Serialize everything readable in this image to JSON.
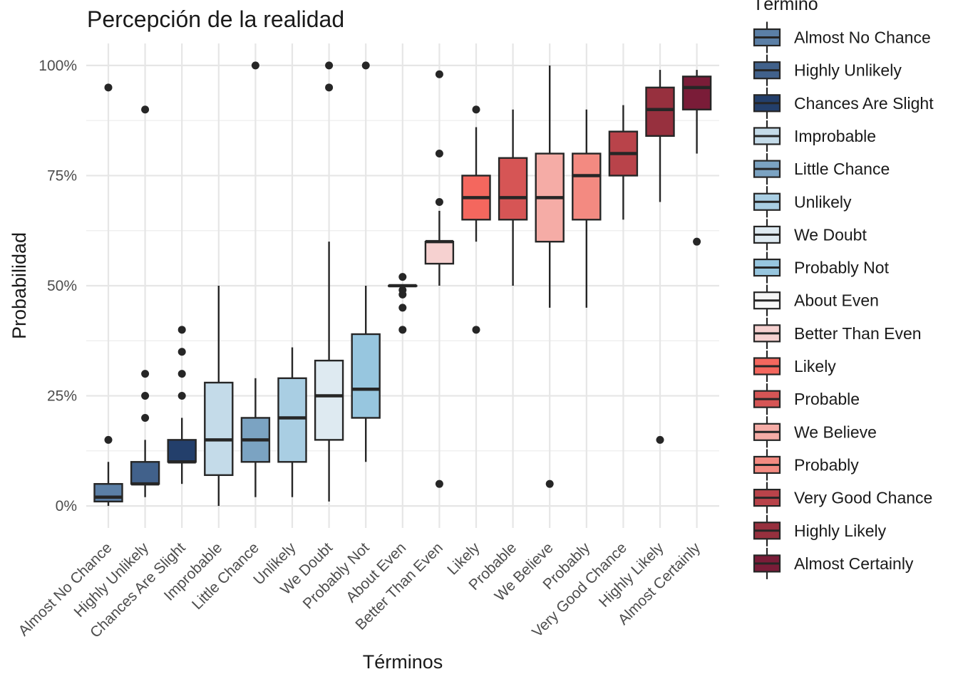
{
  "chart_data": {
    "type": "box",
    "title": "Percepción de la realidad",
    "xlabel": "Términos",
    "ylabel": "Probabilidad",
    "ylim": [
      -0.05,
      1.05
    ],
    "yticks": [
      0,
      0.25,
      0.5,
      0.75,
      1.0
    ],
    "ytick_labels": [
      "0%",
      "25%",
      "50%",
      "75%",
      "100%"
    ],
    "grid": true,
    "legend": {
      "title": "Término",
      "placement": "right"
    },
    "categories": [
      "Almost No Chance",
      "Highly Unlikely",
      "Chances Are Slight",
      "Improbable",
      "Little Chance",
      "Unlikely",
      "We Doubt",
      "Probably Not",
      "About Even",
      "Better Than Even",
      "Likely",
      "Probable",
      "We Believe",
      "Probably",
      "Very Good Chance",
      "Highly Likely",
      "Almost Certainly"
    ],
    "colors": [
      "#5b7fa6",
      "#41618b",
      "#233f6b",
      "#c4dbe9",
      "#7ba3c2",
      "#a9cee3",
      "#deeaf1",
      "#97c6df",
      "#f6f6f6",
      "#f6d1d0",
      "#f4675e",
      "#d65555",
      "#f5aca6",
      "#f38a81",
      "#b9434a",
      "#97303e",
      "#7a1c38"
    ],
    "boxes": [
      {
        "q1": 0.01,
        "median": 0.02,
        "q3": 0.05,
        "whisker_low": 0.0,
        "whisker_high": 0.1,
        "outliers": [
          0.15,
          0.95
        ]
      },
      {
        "q1": 0.05,
        "median": 0.05,
        "q3": 0.1,
        "whisker_low": 0.02,
        "whisker_high": 0.15,
        "outliers": [
          0.2,
          0.25,
          0.3,
          0.9
        ]
      },
      {
        "q1": 0.1,
        "median": 0.1,
        "q3": 0.15,
        "whisker_low": 0.05,
        "whisker_high": 0.2,
        "outliers": [
          0.25,
          0.3,
          0.35,
          0.4
        ]
      },
      {
        "q1": 0.07,
        "median": 0.15,
        "q3": 0.28,
        "whisker_low": 0.0,
        "whisker_high": 0.5,
        "outliers": []
      },
      {
        "q1": 0.1,
        "median": 0.15,
        "q3": 0.2,
        "whisker_low": 0.02,
        "whisker_high": 0.29,
        "outliers": [
          1.0
        ]
      },
      {
        "q1": 0.1,
        "median": 0.2,
        "q3": 0.29,
        "whisker_low": 0.02,
        "whisker_high": 0.36,
        "outliers": []
      },
      {
        "q1": 0.15,
        "median": 0.25,
        "q3": 0.33,
        "whisker_low": 0.01,
        "whisker_high": 0.6,
        "outliers": [
          0.95,
          1.0
        ]
      },
      {
        "q1": 0.2,
        "median": 0.265,
        "q3": 0.39,
        "whisker_low": 0.1,
        "whisker_high": 0.5,
        "outliers": [
          1.0
        ]
      },
      {
        "q1": 0.5,
        "median": 0.5,
        "q3": 0.5,
        "whisker_low": 0.5,
        "whisker_high": 0.5,
        "outliers": [
          0.4,
          0.45,
          0.48,
          0.49,
          0.52
        ]
      },
      {
        "q1": 0.55,
        "median": 0.6,
        "q3": 0.6,
        "whisker_low": 0.5,
        "whisker_high": 0.67,
        "outliers": [
          0.05,
          0.69,
          0.8,
          0.98
        ]
      },
      {
        "q1": 0.65,
        "median": 0.7,
        "q3": 0.75,
        "whisker_low": 0.6,
        "whisker_high": 0.86,
        "outliers": [
          0.4,
          0.9
        ]
      },
      {
        "q1": 0.65,
        "median": 0.7,
        "q3": 0.79,
        "whisker_low": 0.5,
        "whisker_high": 0.9,
        "outliers": []
      },
      {
        "q1": 0.6,
        "median": 0.7,
        "q3": 0.8,
        "whisker_low": 0.45,
        "whisker_high": 1.0,
        "outliers": [
          0.05
        ]
      },
      {
        "q1": 0.65,
        "median": 0.75,
        "q3": 0.8,
        "whisker_low": 0.45,
        "whisker_high": 0.9,
        "outliers": []
      },
      {
        "q1": 0.75,
        "median": 0.8,
        "q3": 0.85,
        "whisker_low": 0.65,
        "whisker_high": 0.91,
        "outliers": []
      },
      {
        "q1": 0.84,
        "median": 0.9,
        "q3": 0.95,
        "whisker_low": 0.69,
        "whisker_high": 0.99,
        "outliers": [
          0.15
        ]
      },
      {
        "q1": 0.9,
        "median": 0.95,
        "q3": 0.975,
        "whisker_low": 0.8,
        "whisker_high": 0.99,
        "outliers": [
          0.6
        ]
      }
    ]
  }
}
